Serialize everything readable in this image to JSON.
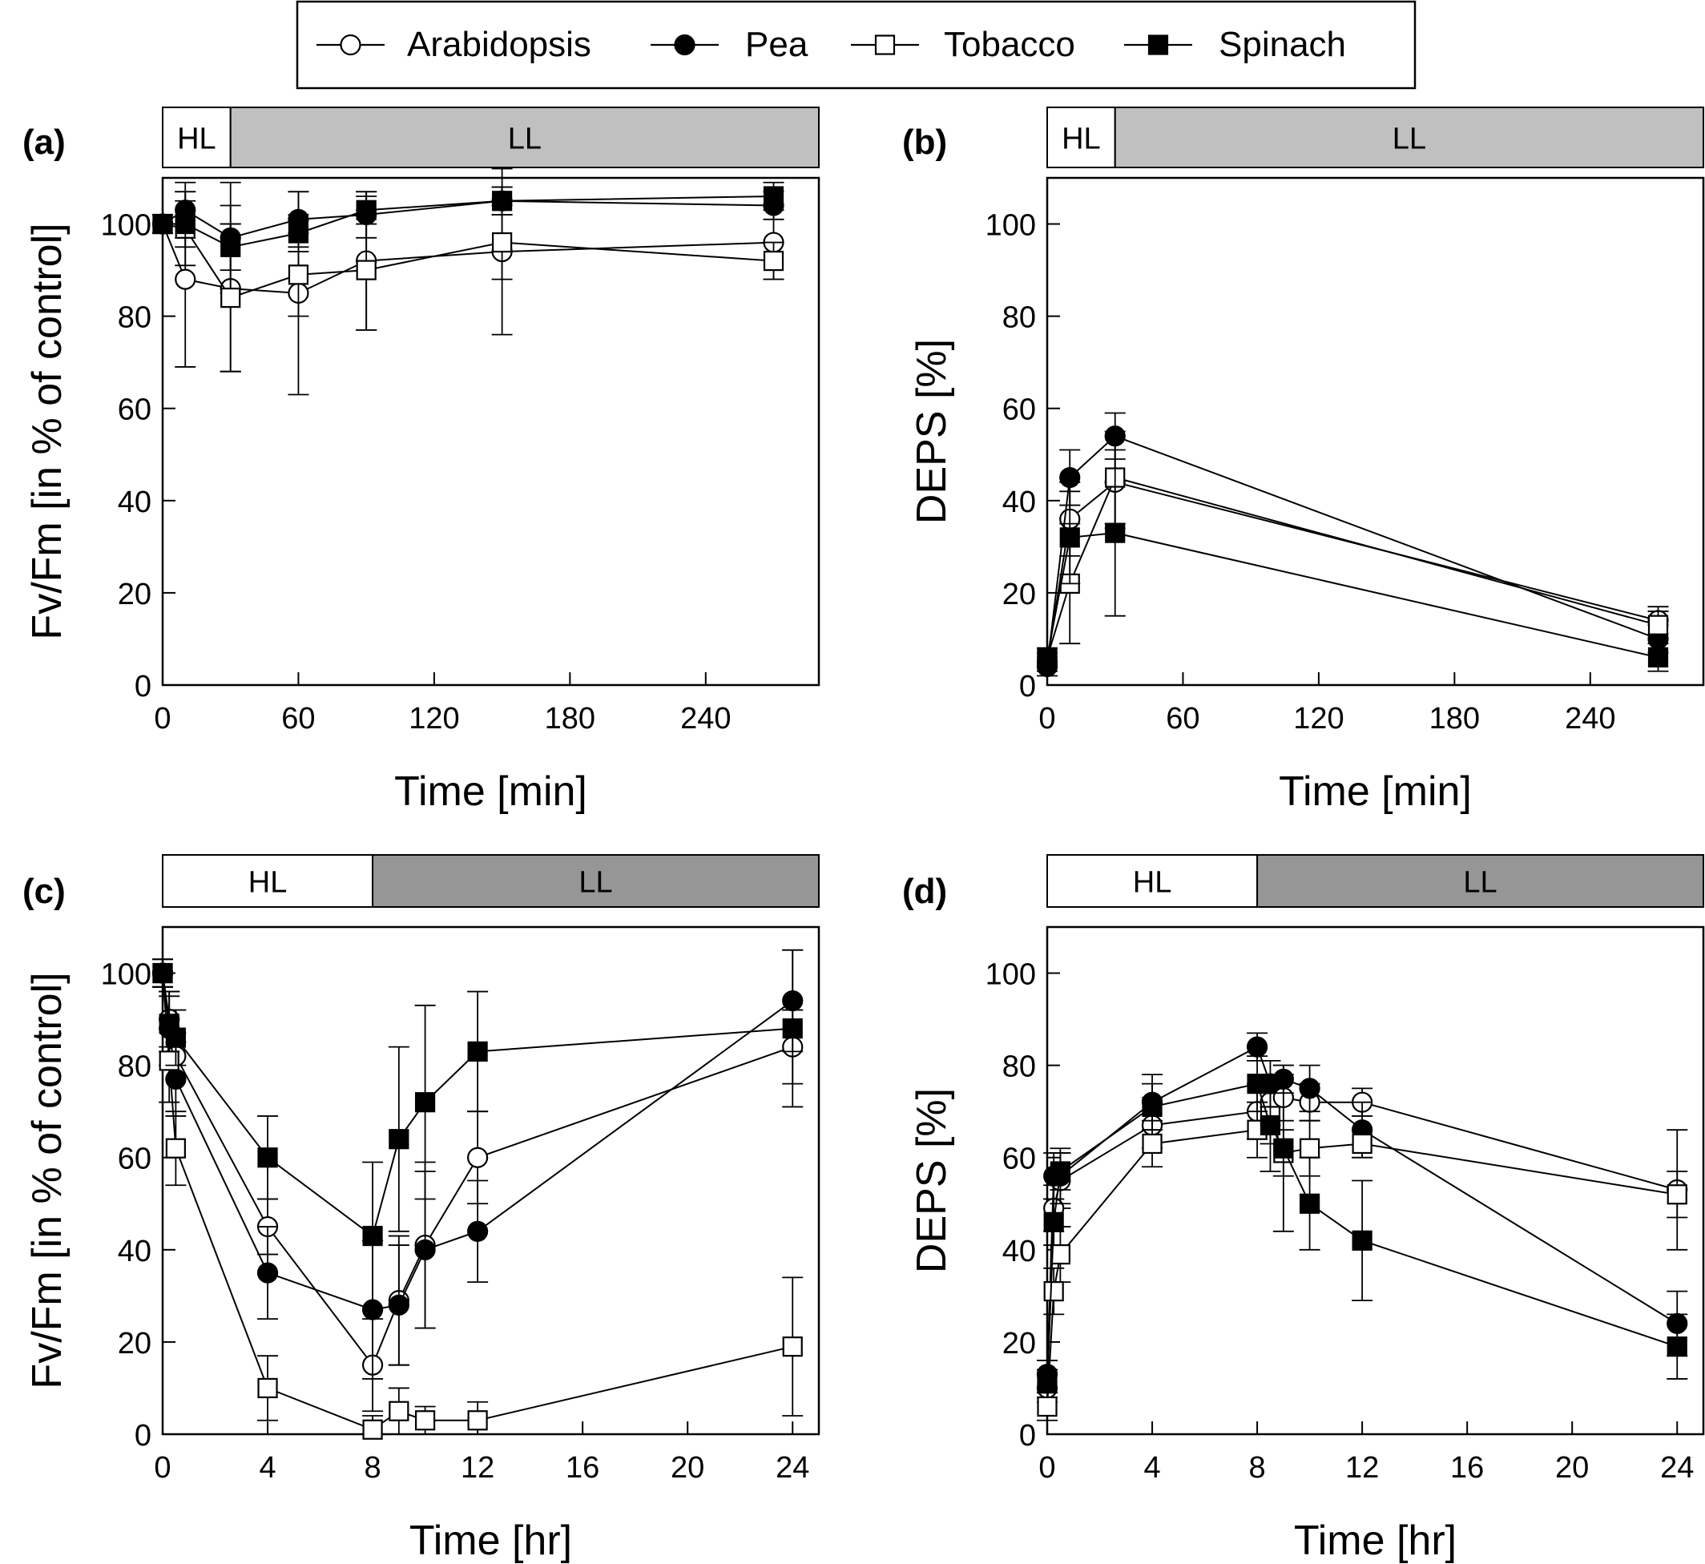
{
  "legend": {
    "entries": [
      {
        "label": "Arabidopsis",
        "marker": "circle-open"
      },
      {
        "label": "Pea",
        "marker": "circle-filled"
      },
      {
        "label": "Tobacco",
        "marker": "square-open"
      },
      {
        "label": "Spinach",
        "marker": "square-filled"
      }
    ]
  },
  "chart_data": [
    {
      "panel": "(a)",
      "type": "line",
      "xlabel": "Time [min]",
      "ylabel": "Fv/Fm [in % of control]",
      "xlim": [
        0,
        290
      ],
      "ylim": [
        0,
        110
      ],
      "xticks": [
        0,
        60,
        120,
        180,
        240
      ],
      "yticks": [
        0,
        20,
        40,
        60,
        80,
        100
      ],
      "light_bar": {
        "segments": [
          {
            "label": "HL",
            "from": 0,
            "to": 30,
            "fill": "#ffffff"
          },
          {
            "label": "LL",
            "from": 30,
            "to": 290,
            "fill": "#c0c0c0"
          }
        ]
      },
      "series": [
        {
          "name": "Arabidopsis",
          "marker": "circle-open",
          "x": [
            0,
            10,
            30,
            60,
            90,
            150,
            270
          ],
          "y": [
            100,
            88,
            86,
            85,
            92,
            94,
            96
          ],
          "err": [
            2,
            19,
            18,
            22,
            15,
            18,
            8
          ]
        },
        {
          "name": "Pea",
          "marker": "circle-filled",
          "x": [
            0,
            10,
            30,
            60,
            90,
            150,
            270
          ],
          "y": [
            100,
            103,
            97,
            101,
            102,
            105,
            104
          ],
          "err": [
            2,
            6,
            12,
            6,
            5,
            3,
            3
          ]
        },
        {
          "name": "Tobacco",
          "marker": "square-open",
          "x": [
            0,
            10,
            30,
            60,
            90,
            150,
            270
          ],
          "y": [
            100,
            99,
            84,
            89,
            90,
            96,
            92
          ],
          "err": [
            2,
            8,
            16,
            9,
            13,
            8,
            4
          ]
        },
        {
          "name": "Spinach",
          "marker": "square-filled",
          "x": [
            0,
            10,
            30,
            60,
            90,
            150,
            270
          ],
          "y": [
            100,
            100,
            95,
            98,
            103,
            105,
            106
          ],
          "err": [
            2,
            5,
            5,
            4,
            3,
            3,
            3
          ]
        }
      ]
    },
    {
      "panel": "(b)",
      "type": "line",
      "xlabel": "Time [min]",
      "ylabel": "DEPS [%]",
      "xlim": [
        0,
        290
      ],
      "ylim": [
        0,
        110
      ],
      "xticks": [
        0,
        60,
        120,
        180,
        240
      ],
      "yticks": [
        0,
        20,
        40,
        60,
        80,
        100
      ],
      "light_bar": {
        "segments": [
          {
            "label": "HL",
            "from": 0,
            "to": 30,
            "fill": "#ffffff"
          },
          {
            "label": "LL",
            "from": 30,
            "to": 290,
            "fill": "#c0c0c0"
          }
        ]
      },
      "series": [
        {
          "name": "Arabidopsis",
          "marker": "circle-open",
          "x": [
            0,
            10,
            30,
            270
          ],
          "y": [
            5,
            36,
            44,
            14
          ],
          "err": [
            2,
            8,
            10,
            3
          ]
        },
        {
          "name": "Pea",
          "marker": "circle-filled",
          "x": [
            0,
            10,
            30,
            270
          ],
          "y": [
            4,
            45,
            54,
            10
          ],
          "err": [
            2,
            6,
            5,
            3
          ]
        },
        {
          "name": "Tobacco",
          "marker": "square-open",
          "x": [
            0,
            10,
            30,
            270
          ],
          "y": [
            6,
            22,
            45,
            13
          ],
          "err": [
            2,
            13,
            10,
            3
          ]
        },
        {
          "name": "Spinach",
          "marker": "square-filled",
          "x": [
            0,
            10,
            30,
            270
          ],
          "y": [
            6,
            32,
            33,
            6
          ],
          "err": [
            2,
            10,
            18,
            3
          ]
        }
      ]
    },
    {
      "panel": "(c)",
      "type": "line",
      "xlabel": "Time [hr]",
      "ylabel": "Fv/Fm [in % of control]",
      "xlim": [
        0,
        25
      ],
      "ylim": [
        0,
        110
      ],
      "xticks": [
        0,
        4,
        8,
        12,
        16,
        20,
        24
      ],
      "yticks": [
        0,
        20,
        40,
        60,
        80,
        100
      ],
      "light_bar": {
        "segments": [
          {
            "label": "HL",
            "from": 0,
            "to": 8,
            "fill": "#ffffff"
          },
          {
            "label": "LL",
            "from": 8,
            "to": 25,
            "fill": "#969696"
          }
        ]
      },
      "series": [
        {
          "name": "Arabidopsis",
          "marker": "circle-open",
          "x": [
            0,
            0.25,
            0.5,
            4,
            8,
            9,
            10,
            12,
            24
          ],
          "y": [
            100,
            90,
            82,
            45,
            15,
            29,
            41,
            60,
            84
          ],
          "err": [
            3,
            6,
            5,
            6,
            10,
            14,
            18,
            10,
            8
          ]
        },
        {
          "name": "Pea",
          "marker": "circle-filled",
          "x": [
            0,
            0.25,
            0.5,
            4,
            8,
            9,
            10,
            12,
            24
          ],
          "y": [
            100,
            88,
            77,
            35,
            27,
            28,
            40,
            44,
            94
          ],
          "err": [
            3,
            8,
            8,
            10,
            15,
            13,
            17,
            11,
            11
          ]
        },
        {
          "name": "Tobacco",
          "marker": "square-open",
          "x": [
            0,
            0.25,
            0.5,
            4,
            8,
            9,
            10,
            12,
            24
          ],
          "y": [
            100,
            81,
            62,
            10,
            1,
            5,
            3,
            3,
            19
          ],
          "err": [
            3,
            9,
            8,
            7,
            3,
            5,
            3,
            4,
            15
          ]
        },
        {
          "name": "Spinach",
          "marker": "square-filled",
          "x": [
            0,
            0.25,
            0.5,
            4,
            8,
            9,
            10,
            12,
            24
          ],
          "y": [
            100,
            89,
            86,
            60,
            43,
            64,
            72,
            83,
            88
          ],
          "err": [
            3,
            6,
            6,
            9,
            16,
            20,
            21,
            13,
            17
          ]
        }
      ]
    },
    {
      "panel": "(d)",
      "type": "line",
      "xlabel": "Time [hr]",
      "ylabel": "DEPS [%]",
      "xlim": [
        0,
        25
      ],
      "ylim": [
        0,
        110
      ],
      "xticks": [
        0,
        4,
        8,
        12,
        16,
        20,
        24
      ],
      "yticks": [
        0,
        20,
        40,
        60,
        80,
        100
      ],
      "light_bar": {
        "segments": [
          {
            "label": "HL",
            "from": 0,
            "to": 8,
            "fill": "#ffffff"
          },
          {
            "label": "LL",
            "from": 8,
            "to": 25,
            "fill": "#969696"
          }
        ]
      },
      "series": [
        {
          "name": "Arabidopsis",
          "marker": "circle-open",
          "x": [
            0,
            0.25,
            0.5,
            4,
            8,
            8.5,
            9,
            10,
            12,
            24
          ],
          "y": [
            10,
            49,
            55,
            67,
            70,
            72,
            73,
            72,
            72,
            53
          ],
          "err": [
            3,
            5,
            6,
            5,
            6,
            5,
            5,
            4,
            3,
            13
          ]
        },
        {
          "name": "Pea",
          "marker": "circle-filled",
          "x": [
            0,
            0.25,
            0.5,
            4,
            8,
            8.5,
            9,
            10,
            12,
            24
          ],
          "y": [
            13,
            56,
            56,
            72,
            84,
            76,
            77,
            75,
            66,
            24
          ],
          "err": [
            3,
            5,
            6,
            6,
            3,
            5,
            3,
            5,
            6,
            7
          ]
        },
        {
          "name": "Tobacco",
          "marker": "square-open",
          "x": [
            0,
            0.25,
            0.5,
            4,
            8,
            8.5,
            9,
            10,
            12,
            24
          ],
          "y": [
            6,
            31,
            39,
            63,
            66,
            69,
            61,
            62,
            63,
            52
          ],
          "err": [
            3,
            5,
            6,
            5,
            6,
            6,
            5,
            6,
            3,
            5
          ]
        },
        {
          "name": "Spinach",
          "marker": "square-filled",
          "x": [
            0,
            0.25,
            0.5,
            4,
            8,
            8.5,
            9,
            10,
            12,
            24
          ],
          "y": [
            11,
            46,
            57,
            71,
            76,
            67,
            62,
            50,
            42,
            19
          ],
          "err": [
            3,
            5,
            4,
            5,
            6,
            10,
            18,
            10,
            13,
            7
          ]
        }
      ]
    }
  ]
}
